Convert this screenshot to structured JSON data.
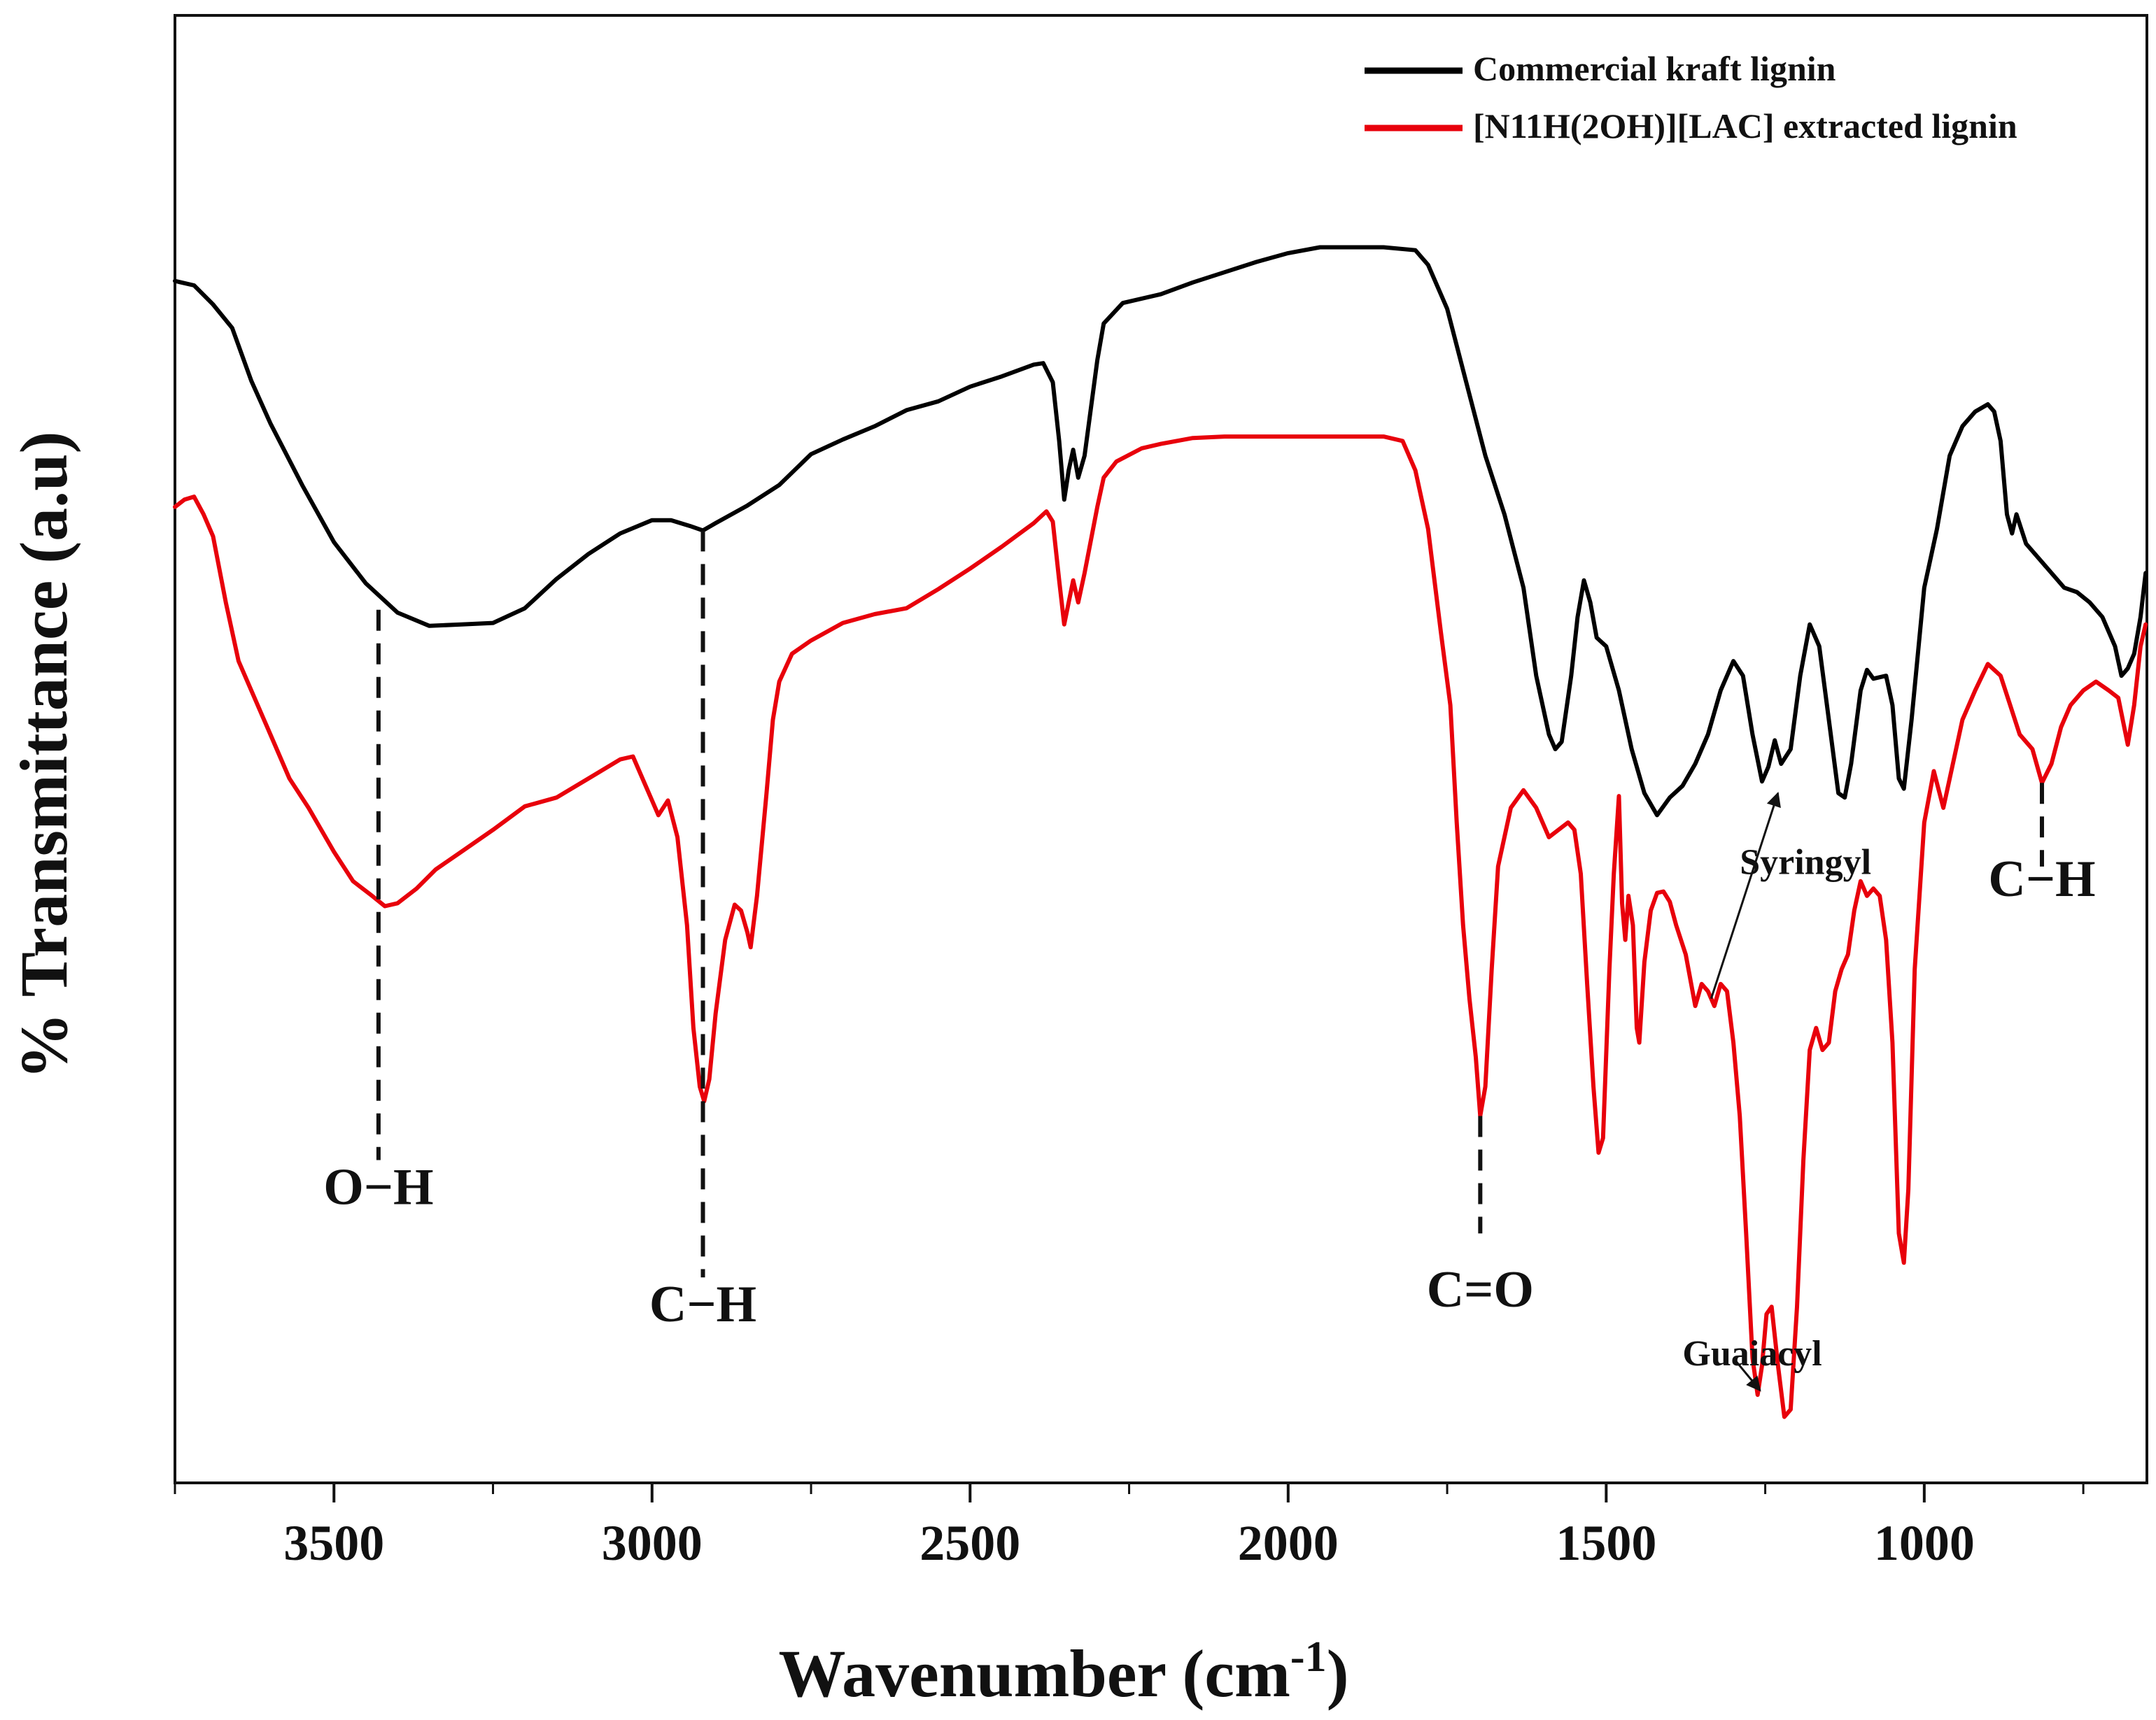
{
  "chart_data": {
    "type": "line",
    "title": "",
    "xlabel": "Wavenumber (cm",
    "xlabel_sup": "-1",
    "xlabel_close": ")",
    "ylabel": "% Transmittance (a.u)",
    "xlim": [
      3750,
      650
    ],
    "ylim": [
      0,
      100
    ],
    "x_ticks": [
      3500,
      3000,
      2500,
      2000,
      1500,
      1000
    ],
    "x_tick_labels": [
      "3500",
      "3000",
      "2500",
      "2000",
      "1500",
      "1000"
    ],
    "series": [
      {
        "name": "Commercial kraft lignin",
        "color": "#000000",
        "points": [
          [
            3750,
            81.9
          ],
          [
            3720,
            81.6
          ],
          [
            3690,
            80.3
          ],
          [
            3660,
            78.7
          ],
          [
            3630,
            75.1
          ],
          [
            3600,
            72.2
          ],
          [
            3550,
            68.0
          ],
          [
            3500,
            64.1
          ],
          [
            3450,
            61.3
          ],
          [
            3400,
            59.3
          ],
          [
            3350,
            58.4
          ],
          [
            3300,
            58.5
          ],
          [
            3250,
            58.6
          ],
          [
            3200,
            59.6
          ],
          [
            3150,
            61.6
          ],
          [
            3100,
            63.3
          ],
          [
            3050,
            64.7
          ],
          [
            3000,
            65.6
          ],
          [
            2970,
            65.6
          ],
          [
            2940,
            65.2
          ],
          [
            2920,
            64.9
          ],
          [
            2900,
            65.4
          ],
          [
            2850,
            66.6
          ],
          [
            2800,
            68.0
          ],
          [
            2750,
            70.1
          ],
          [
            2700,
            71.1
          ],
          [
            2650,
            72.0
          ],
          [
            2600,
            73.1
          ],
          [
            2550,
            73.7
          ],
          [
            2500,
            74.7
          ],
          [
            2450,
            75.4
          ],
          [
            2400,
            76.2
          ],
          [
            2385,
            76.3
          ],
          [
            2370,
            75.0
          ],
          [
            2360,
            71.0
          ],
          [
            2352,
            67.0
          ],
          [
            2345,
            69.0
          ],
          [
            2338,
            70.4
          ],
          [
            2330,
            68.5
          ],
          [
            2320,
            70.0
          ],
          [
            2300,
            76.5
          ],
          [
            2290,
            79.0
          ],
          [
            2260,
            80.4
          ],
          [
            2200,
            81.0
          ],
          [
            2150,
            81.8
          ],
          [
            2100,
            82.5
          ],
          [
            2050,
            83.2
          ],
          [
            2000,
            83.8
          ],
          [
            1950,
            84.2
          ],
          [
            1900,
            84.2
          ],
          [
            1850,
            84.2
          ],
          [
            1800,
            84.0
          ],
          [
            1780,
            83.0
          ],
          [
            1750,
            80.0
          ],
          [
            1720,
            75.0
          ],
          [
            1690,
            70.0
          ],
          [
            1660,
            66.0
          ],
          [
            1630,
            61.0
          ],
          [
            1610,
            55.0
          ],
          [
            1590,
            51.0
          ],
          [
            1580,
            50.0
          ],
          [
            1570,
            50.5
          ],
          [
            1555,
            55.0
          ],
          [
            1545,
            59.0
          ],
          [
            1535,
            61.5
          ],
          [
            1525,
            60.0
          ],
          [
            1515,
            57.6
          ],
          [
            1500,
            57.0
          ],
          [
            1480,
            54.0
          ],
          [
            1460,
            50.0
          ],
          [
            1440,
            47.0
          ],
          [
            1420,
            45.5
          ],
          [
            1400,
            46.7
          ],
          [
            1380,
            47.5
          ],
          [
            1360,
            49.0
          ],
          [
            1340,
            51.0
          ],
          [
            1320,
            54.0
          ],
          [
            1300,
            56.0
          ],
          [
            1285,
            55.0
          ],
          [
            1270,
            51.0
          ],
          [
            1255,
            47.8
          ],
          [
            1245,
            48.8
          ],
          [
            1235,
            50.6
          ],
          [
            1225,
            49.0
          ],
          [
            1210,
            50.0
          ],
          [
            1195,
            55.0
          ],
          [
            1180,
            58.5
          ],
          [
            1165,
            57.0
          ],
          [
            1150,
            52.0
          ],
          [
            1135,
            47.0
          ],
          [
            1125,
            46.7
          ],
          [
            1115,
            49.0
          ],
          [
            1100,
            54.0
          ],
          [
            1090,
            55.4
          ],
          [
            1080,
            54.8
          ],
          [
            1070,
            54.9
          ],
          [
            1060,
            55.0
          ],
          [
            1050,
            53.0
          ],
          [
            1040,
            48.0
          ],
          [
            1032,
            47.3
          ],
          [
            1020,
            52.0
          ],
          [
            1000,
            61.0
          ],
          [
            980,
            65.0
          ],
          [
            960,
            70.0
          ],
          [
            940,
            72.0
          ],
          [
            920,
            73.0
          ],
          [
            900,
            73.5
          ],
          [
            890,
            73.0
          ],
          [
            880,
            71.0
          ],
          [
            870,
            66.0
          ],
          [
            862,
            64.7
          ],
          [
            855,
            66.0
          ],
          [
            840,
            64.0
          ],
          [
            820,
            63.0
          ],
          [
            800,
            62.0
          ],
          [
            780,
            61.0
          ],
          [
            760,
            60.7
          ],
          [
            740,
            60.0
          ],
          [
            720,
            59.0
          ],
          [
            700,
            57.0
          ],
          [
            690,
            55.0
          ],
          [
            680,
            55.5
          ],
          [
            670,
            56.5
          ],
          [
            660,
            59.0
          ],
          [
            652,
            62.0
          ]
        ]
      },
      {
        "name": "[N11H(2OH)][LAC] extracted lignin",
        "color": "#e8000b",
        "points": [
          [
            3750,
            66.5
          ],
          [
            3735,
            67.0
          ],
          [
            3720,
            67.2
          ],
          [
            3705,
            66.0
          ],
          [
            3690,
            64.5
          ],
          [
            3670,
            60.0
          ],
          [
            3650,
            56.0
          ],
          [
            3630,
            54.0
          ],
          [
            3600,
            51.0
          ],
          [
            3570,
            48.0
          ],
          [
            3540,
            46.0
          ],
          [
            3500,
            43.0
          ],
          [
            3470,
            41.0
          ],
          [
            3440,
            40.0
          ],
          [
            3420,
            39.3
          ],
          [
            3400,
            39.5
          ],
          [
            3370,
            40.5
          ],
          [
            3340,
            41.8
          ],
          [
            3300,
            43.0
          ],
          [
            3250,
            44.5
          ],
          [
            3200,
            46.1
          ],
          [
            3150,
            46.7
          ],
          [
            3100,
            48.0
          ],
          [
            3050,
            49.3
          ],
          [
            3030,
            49.5
          ],
          [
            3010,
            47.5
          ],
          [
            2990,
            45.5
          ],
          [
            2975,
            46.5
          ],
          [
            2960,
            44.0
          ],
          [
            2945,
            38.0
          ],
          [
            2935,
            31.0
          ],
          [
            2925,
            27.0
          ],
          [
            2918,
            26.0
          ],
          [
            2910,
            27.5
          ],
          [
            2900,
            32.0
          ],
          [
            2885,
            37.0
          ],
          [
            2870,
            39.4
          ],
          [
            2860,
            39.0
          ],
          [
            2850,
            37.5
          ],
          [
            2845,
            36.5
          ],
          [
            2835,
            40.0
          ],
          [
            2820,
            47.0
          ],
          [
            2810,
            52.0
          ],
          [
            2800,
            54.6
          ],
          [
            2780,
            56.5
          ],
          [
            2750,
            57.4
          ],
          [
            2700,
            58.6
          ],
          [
            2650,
            59.2
          ],
          [
            2600,
            59.6
          ],
          [
            2550,
            60.9
          ],
          [
            2500,
            62.3
          ],
          [
            2450,
            63.8
          ],
          [
            2400,
            65.4
          ],
          [
            2380,
            66.2
          ],
          [
            2370,
            65.5
          ],
          [
            2360,
            61.5
          ],
          [
            2352,
            58.5
          ],
          [
            2345,
            60.0
          ],
          [
            2338,
            61.5
          ],
          [
            2330,
            60.0
          ],
          [
            2320,
            62.0
          ],
          [
            2300,
            66.5
          ],
          [
            2290,
            68.5
          ],
          [
            2270,
            69.6
          ],
          [
            2230,
            70.5
          ],
          [
            2200,
            70.8
          ],
          [
            2150,
            71.2
          ],
          [
            2100,
            71.3
          ],
          [
            2050,
            71.3
          ],
          [
            2000,
            71.3
          ],
          [
            1950,
            71.3
          ],
          [
            1900,
            71.3
          ],
          [
            1850,
            71.3
          ],
          [
            1820,
            71.0
          ],
          [
            1800,
            69.0
          ],
          [
            1780,
            65.0
          ],
          [
            1760,
            58.0
          ],
          [
            1745,
            53.0
          ],
          [
            1735,
            45.0
          ],
          [
            1725,
            38.0
          ],
          [
            1715,
            33.0
          ],
          [
            1705,
            29.0
          ],
          [
            1698,
            25.0
          ],
          [
            1690,
            27.0
          ],
          [
            1680,
            35.0
          ],
          [
            1670,
            42.0
          ],
          [
            1650,
            46.0
          ],
          [
            1630,
            47.2
          ],
          [
            1610,
            46.0
          ],
          [
            1590,
            44.0
          ],
          [
            1575,
            44.5
          ],
          [
            1560,
            45.0
          ],
          [
            1550,
            44.5
          ],
          [
            1540,
            41.5
          ],
          [
            1530,
            34.0
          ],
          [
            1520,
            27.0
          ],
          [
            1512,
            22.5
          ],
          [
            1505,
            23.5
          ],
          [
            1495,
            35.0
          ],
          [
            1488,
            41.5
          ],
          [
            1480,
            46.8
          ],
          [
            1475,
            39.5
          ],
          [
            1470,
            37.0
          ],
          [
            1465,
            40.0
          ],
          [
            1458,
            38.0
          ],
          [
            1452,
            31.0
          ],
          [
            1448,
            30.0
          ],
          [
            1440,
            35.5
          ],
          [
            1430,
            39.0
          ],
          [
            1420,
            40.2
          ],
          [
            1410,
            40.3
          ],
          [
            1400,
            39.6
          ],
          [
            1390,
            38.0
          ],
          [
            1375,
            36.0
          ],
          [
            1360,
            32.5
          ],
          [
            1350,
            34.0
          ],
          [
            1340,
            33.5
          ],
          [
            1330,
            32.5
          ],
          [
            1320,
            34.0
          ],
          [
            1310,
            33.5
          ],
          [
            1300,
            30.0
          ],
          [
            1290,
            25.0
          ],
          [
            1280,
            17.0
          ],
          [
            1270,
            8.5
          ],
          [
            1262,
            6.0
          ],
          [
            1255,
            8.0
          ],
          [
            1248,
            11.5
          ],
          [
            1240,
            12.0
          ],
          [
            1230,
            8.0
          ],
          [
            1220,
            4.5
          ],
          [
            1210,
            5.0
          ],
          [
            1200,
            12.0
          ],
          [
            1190,
            22.0
          ],
          [
            1180,
            29.5
          ],
          [
            1170,
            31.0
          ],
          [
            1160,
            29.5
          ],
          [
            1150,
            30.0
          ],
          [
            1140,
            33.5
          ],
          [
            1130,
            35.0
          ],
          [
            1120,
            36.0
          ],
          [
            1110,
            39.0
          ],
          [
            1100,
            41.0
          ],
          [
            1090,
            40.0
          ],
          [
            1080,
            40.5
          ],
          [
            1070,
            40.0
          ],
          [
            1060,
            37.0
          ],
          [
            1050,
            30.0
          ],
          [
            1040,
            17.0
          ],
          [
            1032,
            15.0
          ],
          [
            1025,
            20.0
          ],
          [
            1015,
            35.0
          ],
          [
            1000,
            45.0
          ],
          [
            985,
            48.5
          ],
          [
            970,
            46.0
          ],
          [
            960,
            48.0
          ],
          [
            940,
            52.0
          ],
          [
            920,
            54.0
          ],
          [
            900,
            55.8
          ],
          [
            880,
            55.0
          ],
          [
            865,
            53.0
          ],
          [
            850,
            51.0
          ],
          [
            830,
            50.0
          ],
          [
            815,
            47.7
          ],
          [
            800,
            49.0
          ],
          [
            785,
            51.5
          ],
          [
            770,
            53.0
          ],
          [
            750,
            54.0
          ],
          [
            730,
            54.6
          ],
          [
            710,
            54.0
          ],
          [
            695,
            53.5
          ],
          [
            680,
            50.3
          ],
          [
            670,
            53.0
          ],
          [
            660,
            57.0
          ],
          [
            652,
            58.5
          ]
        ]
      }
    ],
    "legend": {
      "position": "top-right",
      "entries": [
        "Commercial kraft lignin",
        "[N11H(2OH)][LAC] extracted lignin"
      ]
    },
    "annotations": [
      {
        "type": "band",
        "label": "O−H",
        "x": 3430,
        "y_line_top": 59.5,
        "y_line_bottom": 22.0,
        "y_label": 19.0
      },
      {
        "type": "band",
        "label": "C−H",
        "x": 2920,
        "y_line_top": 64.9,
        "y_line_bottom": 14.0,
        "y_label": 11.0
      },
      {
        "type": "band",
        "label": "C=O",
        "x": 1698,
        "y_line_top": 25.0,
        "y_line_bottom": 17.0,
        "y_label": 12.0
      },
      {
        "type": "band",
        "label": "C−H",
        "x": 815,
        "y_line_top": 47.7,
        "y_line_bottom": 42.0,
        "y_label": 40.0
      },
      {
        "type": "arrow",
        "label": "Syringyl",
        "label_x": 1290,
        "label_y": 41.5,
        "from_x": 1335,
        "from_y": 33.0,
        "to_x": 1230,
        "to_y": 47.0
      },
      {
        "type": "arrow",
        "label": "Guaiacyl",
        "label_x": 1380,
        "label_y": 8.0,
        "from_x": 1300,
        "from_y": 8.5,
        "to_x": 1258,
        "to_y": 6.3
      }
    ]
  }
}
